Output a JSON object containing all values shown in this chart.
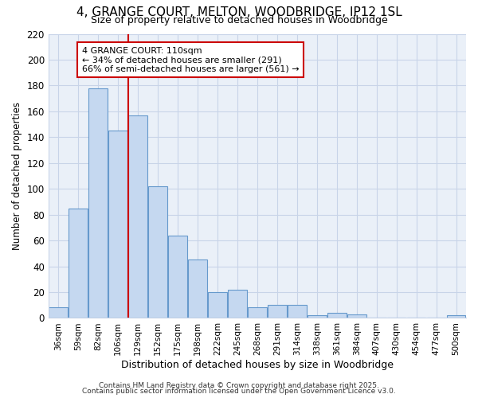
{
  "title_line1": "4, GRANGE COURT, MELTON, WOODBRIDGE, IP12 1SL",
  "title_line2": "Size of property relative to detached houses in Woodbridge",
  "xlabel": "Distribution of detached houses by size in Woodbridge",
  "ylabel": "Number of detached properties",
  "bar_labels": [
    "36sqm",
    "59sqm",
    "82sqm",
    "106sqm",
    "129sqm",
    "152sqm",
    "175sqm",
    "198sqm",
    "222sqm",
    "245sqm",
    "268sqm",
    "291sqm",
    "314sqm",
    "338sqm",
    "361sqm",
    "384sqm",
    "407sqm",
    "430sqm",
    "454sqm",
    "477sqm",
    "500sqm"
  ],
  "bar_values": [
    8,
    85,
    178,
    145,
    157,
    102,
    64,
    45,
    20,
    22,
    8,
    10,
    10,
    2,
    4,
    3,
    0,
    0,
    0,
    0,
    2
  ],
  "bar_color": "#c5d8f0",
  "bar_edge_color": "#6699cc",
  "property_line_x": 3.5,
  "annotation_title": "4 GRANGE COURT: 110sqm",
  "annotation_line2": "← 34% of detached houses are smaller (291)",
  "annotation_line3": "66% of semi-detached houses are larger (561) →",
  "annotation_box_color": "#ffffff",
  "annotation_box_edge": "#cc0000",
  "vline_color": "#cc0000",
  "grid_color": "#c8d4e8",
  "bg_color": "#ffffff",
  "plot_bg_color": "#eaf0f8",
  "footer_line1": "Contains HM Land Registry data © Crown copyright and database right 2025.",
  "footer_line2": "Contains public sector information licensed under the Open Government Licence v3.0.",
  "ylim": [
    0,
    220
  ],
  "yticks": [
    0,
    20,
    40,
    60,
    80,
    100,
    120,
    140,
    160,
    180,
    200,
    220
  ]
}
